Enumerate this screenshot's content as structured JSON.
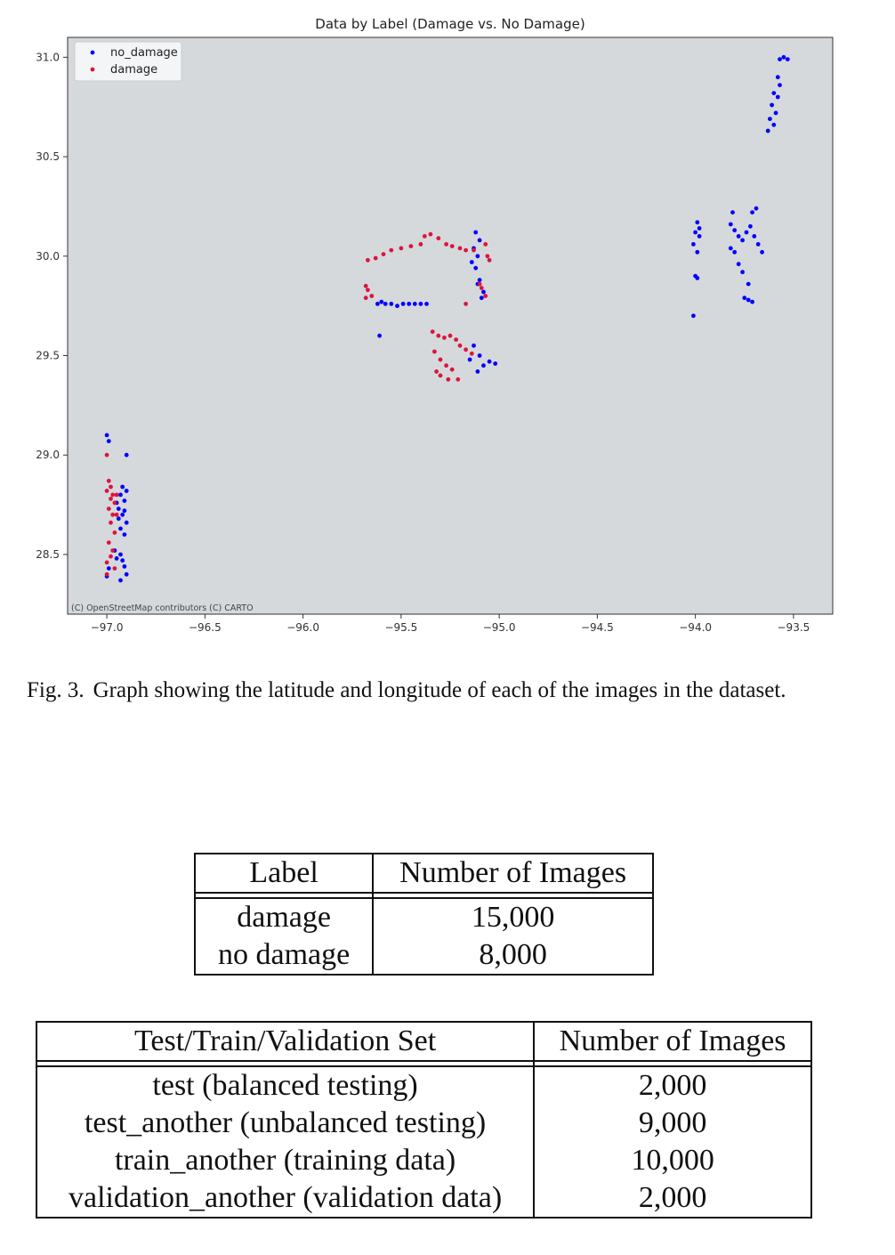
{
  "chart_data": {
    "type": "scatter",
    "title": "Data by Label (Damage vs. No Damage)",
    "xlabel": "",
    "ylabel": "",
    "xlim": [
      -97.2,
      -93.3
    ],
    "ylim": [
      28.2,
      31.1
    ],
    "xticks": [
      -97.0,
      -96.5,
      -96.0,
      -95.5,
      -95.0,
      -94.5,
      -94.0,
      -93.5
    ],
    "xtick_labels": [
      "−97.0",
      "−96.5",
      "−96.0",
      "−95.5",
      "−95.0",
      "−94.5",
      "−94.0",
      "−93.5"
    ],
    "yticks": [
      28.5,
      29.0,
      29.5,
      30.0,
      30.5,
      31.0
    ],
    "ytick_labels": [
      "28.5",
      "29.0",
      "29.5",
      "30.0",
      "30.5",
      "31.0"
    ],
    "grid": false,
    "legend_placement": "top-left",
    "background_color": "#d5d9dc",
    "attribution": "(C) OpenStreetMap contributors (C) CARTO",
    "series": [
      {
        "name": "no_damage",
        "color": "#0000ff",
        "points": [
          [
            -97.0,
            29.1
          ],
          [
            -96.99,
            29.07
          ],
          [
            -96.9,
            29.0
          ],
          [
            -96.92,
            28.84
          ],
          [
            -96.93,
            28.8
          ],
          [
            -96.91,
            28.77
          ],
          [
            -96.94,
            28.73
          ],
          [
            -96.92,
            28.7
          ],
          [
            -96.9,
            28.66
          ],
          [
            -96.93,
            28.63
          ],
          [
            -96.91,
            28.6
          ],
          [
            -96.95,
            28.76
          ],
          [
            -96.9,
            28.82
          ],
          [
            -96.93,
            28.5
          ],
          [
            -96.92,
            28.47
          ],
          [
            -96.91,
            28.44
          ],
          [
            -96.9,
            28.4
          ],
          [
            -96.93,
            28.37
          ],
          [
            -96.95,
            28.48
          ],
          [
            -96.99,
            28.43
          ],
          [
            -97.0,
            28.39
          ],
          [
            -96.96,
            28.52
          ],
          [
            -96.91,
            28.72
          ],
          [
            -96.94,
            28.68
          ],
          [
            -95.62,
            29.76
          ],
          [
            -95.58,
            29.76
          ],
          [
            -95.55,
            29.76
          ],
          [
            -95.52,
            29.75
          ],
          [
            -95.49,
            29.76
          ],
          [
            -95.46,
            29.76
          ],
          [
            -95.43,
            29.76
          ],
          [
            -95.4,
            29.76
          ],
          [
            -95.37,
            29.76
          ],
          [
            -95.6,
            29.77
          ],
          [
            -95.61,
            29.6
          ],
          [
            -95.12,
            30.12
          ],
          [
            -95.1,
            30.08
          ],
          [
            -95.13,
            30.04
          ],
          [
            -95.11,
            30.0
          ],
          [
            -95.14,
            29.97
          ],
          [
            -95.12,
            29.94
          ],
          [
            -95.1,
            29.88
          ],
          [
            -95.08,
            29.82
          ],
          [
            -95.11,
            29.86
          ],
          [
            -95.09,
            29.79
          ],
          [
            -95.13,
            29.55
          ],
          [
            -95.1,
            29.5
          ],
          [
            -95.08,
            29.45
          ],
          [
            -95.05,
            29.47
          ],
          [
            -95.02,
            29.46
          ],
          [
            -95.11,
            29.42
          ],
          [
            -95.15,
            29.48
          ],
          [
            -93.99,
            30.17
          ],
          [
            -93.98,
            30.14
          ],
          [
            -94.0,
            30.12
          ],
          [
            -93.98,
            30.1
          ],
          [
            -94.01,
            30.06
          ],
          [
            -93.99,
            30.02
          ],
          [
            -94.0,
            29.9
          ],
          [
            -93.99,
            29.89
          ],
          [
            -94.01,
            29.7
          ],
          [
            -93.82,
            30.16
          ],
          [
            -93.8,
            30.13
          ],
          [
            -93.78,
            30.1
          ],
          [
            -93.76,
            30.08
          ],
          [
            -93.74,
            30.12
          ],
          [
            -93.72,
            30.15
          ],
          [
            -93.7,
            30.1
          ],
          [
            -93.68,
            30.06
          ],
          [
            -93.66,
            30.02
          ],
          [
            -93.82,
            30.04
          ],
          [
            -93.8,
            30.02
          ],
          [
            -93.78,
            29.96
          ],
          [
            -93.76,
            29.92
          ],
          [
            -93.73,
            29.86
          ],
          [
            -93.75,
            29.79
          ],
          [
            -93.73,
            29.78
          ],
          [
            -93.71,
            29.77
          ],
          [
            -93.69,
            30.24
          ],
          [
            -93.71,
            30.22
          ],
          [
            -93.81,
            30.22
          ],
          [
            -93.55,
            31.0
          ],
          [
            -93.57,
            30.99
          ],
          [
            -93.53,
            30.99
          ],
          [
            -93.58,
            30.9
          ],
          [
            -93.57,
            30.86
          ],
          [
            -93.6,
            30.82
          ],
          [
            -93.58,
            30.8
          ],
          [
            -93.61,
            30.76
          ],
          [
            -93.59,
            30.72
          ],
          [
            -93.62,
            30.69
          ],
          [
            -93.6,
            30.66
          ],
          [
            -93.63,
            30.63
          ]
        ]
      },
      {
        "name": "damage",
        "color": "#dc143c",
        "points": [
          [
            -97.0,
            29.0
          ],
          [
            -96.99,
            28.87
          ],
          [
            -96.98,
            28.84
          ],
          [
            -97.0,
            28.82
          ],
          [
            -96.97,
            28.8
          ],
          [
            -96.98,
            28.78
          ],
          [
            -96.96,
            28.76
          ],
          [
            -96.99,
            28.73
          ],
          [
            -96.97,
            28.7
          ],
          [
            -96.98,
            28.66
          ],
          [
            -96.96,
            28.61
          ],
          [
            -96.99,
            28.56
          ],
          [
            -96.97,
            28.52
          ],
          [
            -96.98,
            28.49
          ],
          [
            -97.0,
            28.46
          ],
          [
            -96.96,
            28.43
          ],
          [
            -97.0,
            28.4
          ],
          [
            -96.95,
            28.8
          ],
          [
            -96.95,
            28.7
          ],
          [
            -95.67,
            29.98
          ],
          [
            -95.63,
            29.99
          ],
          [
            -95.59,
            30.01
          ],
          [
            -95.55,
            30.03
          ],
          [
            -95.5,
            30.04
          ],
          [
            -95.45,
            30.05
          ],
          [
            -95.4,
            30.06
          ],
          [
            -95.38,
            30.1
          ],
          [
            -95.35,
            30.11
          ],
          [
            -95.31,
            30.09
          ],
          [
            -95.27,
            30.06
          ],
          [
            -95.24,
            30.05
          ],
          [
            -95.2,
            30.04
          ],
          [
            -95.17,
            30.03
          ],
          [
            -95.13,
            30.03
          ],
          [
            -95.07,
            30.06
          ],
          [
            -95.06,
            30.0
          ],
          [
            -95.05,
            29.98
          ],
          [
            -95.68,
            29.85
          ],
          [
            -95.67,
            29.83
          ],
          [
            -95.65,
            29.8
          ],
          [
            -95.68,
            29.79
          ],
          [
            -95.1,
            29.86
          ],
          [
            -95.09,
            29.84
          ],
          [
            -95.07,
            29.8
          ],
          [
            -95.17,
            29.76
          ],
          [
            -95.34,
            29.62
          ],
          [
            -95.31,
            29.6
          ],
          [
            -95.28,
            29.59
          ],
          [
            -95.25,
            29.6
          ],
          [
            -95.22,
            29.58
          ],
          [
            -95.2,
            29.55
          ],
          [
            -95.17,
            29.53
          ],
          [
            -95.14,
            29.51
          ],
          [
            -95.33,
            29.52
          ],
          [
            -95.3,
            29.48
          ],
          [
            -95.27,
            29.45
          ],
          [
            -95.32,
            29.42
          ],
          [
            -95.3,
            29.4
          ],
          [
            -95.26,
            29.38
          ],
          [
            -95.21,
            29.38
          ],
          [
            -95.24,
            29.43
          ]
        ]
      }
    ]
  },
  "caption": {
    "label": "Fig. 3.",
    "text": "Graph showing the latitude and longitude of each of the images in the dataset."
  },
  "table1": {
    "headers": [
      "Label",
      "Number of Images"
    ],
    "rows": [
      [
        "damage",
        "15,000"
      ],
      [
        "no damage",
        "8,000"
      ]
    ]
  },
  "table2": {
    "headers": [
      "Test/Train/Validation Set",
      "Number of Images"
    ],
    "rows": [
      [
        "test (balanced testing)",
        "2,000"
      ],
      [
        "test_another (unbalanced testing)",
        "9,000"
      ],
      [
        "train_another (training data)",
        "10,000"
      ],
      [
        "validation_another (validation data)",
        "2,000"
      ]
    ]
  }
}
